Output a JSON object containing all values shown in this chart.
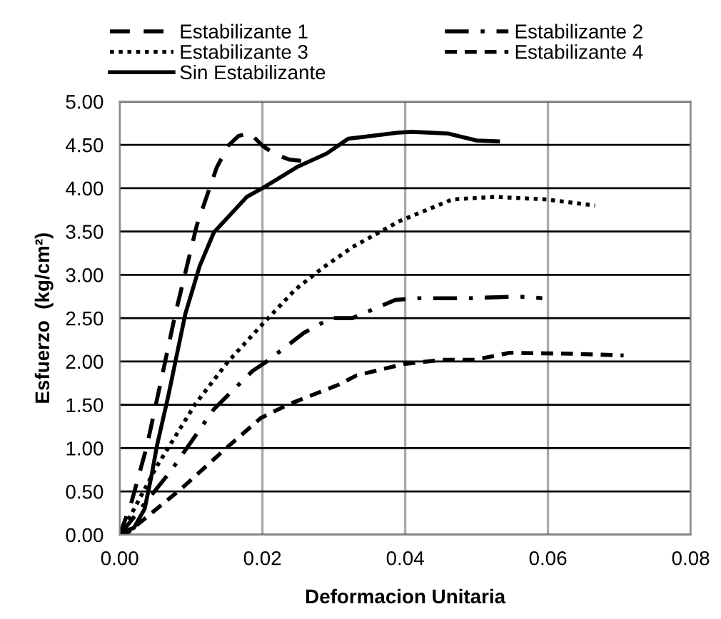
{
  "chart_data": {
    "type": "line",
    "xlabel": "Deformacion Unitaria",
    "ylabel": "Esfuerzo  (kg/cm²)",
    "xlim": [
      0,
      0.08
    ],
    "xticks": [
      {
        "value": 0,
        "label": "0.00"
      },
      {
        "value": 0.02,
        "label": "0.02"
      },
      {
        "value": 0.04,
        "label": "0.04"
      },
      {
        "value": 0.06,
        "label": "0.06"
      },
      {
        "value": 0.08,
        "label": "0.08"
      }
    ],
    "ylim": [
      0,
      5
    ],
    "yticks": [
      {
        "value": 0,
        "label": "0.00"
      },
      {
        "value": 0.5,
        "label": "0.50"
      },
      {
        "value": 1,
        "label": "1.00"
      },
      {
        "value": 1.5,
        "label": "1.50"
      },
      {
        "value": 2,
        "label": "2.00"
      },
      {
        "value": 2.5,
        "label": "2.50"
      },
      {
        "value": 3,
        "label": "3.00"
      },
      {
        "value": 3.5,
        "label": "3.50"
      },
      {
        "value": 4,
        "label": "4.00"
      },
      {
        "value": 4.5,
        "label": "4.50"
      },
      {
        "value": 5,
        "label": "5.00"
      }
    ],
    "grid": true,
    "legend": "top",
    "marker": "none",
    "series": [
      {
        "name": "Estabilizante 1",
        "color": "#000000",
        "line_style": "long_dashed",
        "x": [
          0,
          0.0016,
          0.0038,
          0.0058,
          0.0078,
          0.0108,
          0.0136,
          0.0152,
          0.0166,
          0.0182,
          0.02,
          0.0218,
          0.0238,
          0.0262
        ],
        "values": [
          0,
          0.36,
          1.02,
          1.78,
          2.55,
          3.57,
          4.24,
          4.49,
          4.6,
          4.64,
          4.49,
          4.39,
          4.33,
          4.31
        ]
      },
      {
        "name": "Estabilizante 2",
        "color": "#000000",
        "line_style": "dashdot",
        "x": [
          0,
          0.0004,
          0.0072,
          0.0132,
          0.0186,
          0.0206,
          0.0258,
          0.0296,
          0.0326,
          0.0386,
          0.0418,
          0.0488,
          0.0558,
          0.0592
        ],
        "values": [
          0,
          0.04,
          0.74,
          1.45,
          1.89,
          2.0,
          2.33,
          2.5,
          2.5,
          2.71,
          2.73,
          2.73,
          2.75,
          2.73
        ]
      },
      {
        "name": "Estabilizante 3",
        "color": "#000000",
        "line_style": "dotted",
        "x": [
          0,
          0.0006,
          0.0052,
          0.0106,
          0.0152,
          0.02,
          0.0246,
          0.0286,
          0.0326,
          0.0392,
          0.0466,
          0.0526,
          0.0598,
          0.0666
        ],
        "values": [
          0,
          0.08,
          0.79,
          1.51,
          2.0,
          2.43,
          2.83,
          3.09,
          3.32,
          3.62,
          3.87,
          3.9,
          3.87,
          3.8
        ]
      },
      {
        "name": "Estabilizante 4",
        "color": "#000000",
        "line_style": "dashed",
        "x": [
          0,
          0.0012,
          0.0086,
          0.0152,
          0.0198,
          0.0238,
          0.0306,
          0.0332,
          0.0398,
          0.0452,
          0.0498,
          0.0546,
          0.0632,
          0.0706
        ],
        "values": [
          0,
          0.03,
          0.53,
          1.02,
          1.35,
          1.51,
          1.73,
          1.84,
          1.97,
          2.02,
          2.02,
          2.1,
          2.09,
          2.07
        ]
      },
      {
        "name": "Sin Estabilizante",
        "color": "#000000",
        "line_style": "solid",
        "x": [
          0,
          0.002,
          0.0035,
          0.0045,
          0.0052,
          0.0068,
          0.0092,
          0.0112,
          0.0132,
          0.0178,
          0.02,
          0.025,
          0.029,
          0.032,
          0.039,
          0.041,
          0.046,
          0.05,
          0.053
        ],
        "values": [
          0.02,
          0.08,
          0.3,
          0.7,
          1.02,
          1.6,
          2.55,
          3.1,
          3.49,
          3.9,
          4.0,
          4.25,
          4.4,
          4.57,
          4.64,
          4.65,
          4.63,
          4.55,
          4.54
        ]
      }
    ]
  }
}
